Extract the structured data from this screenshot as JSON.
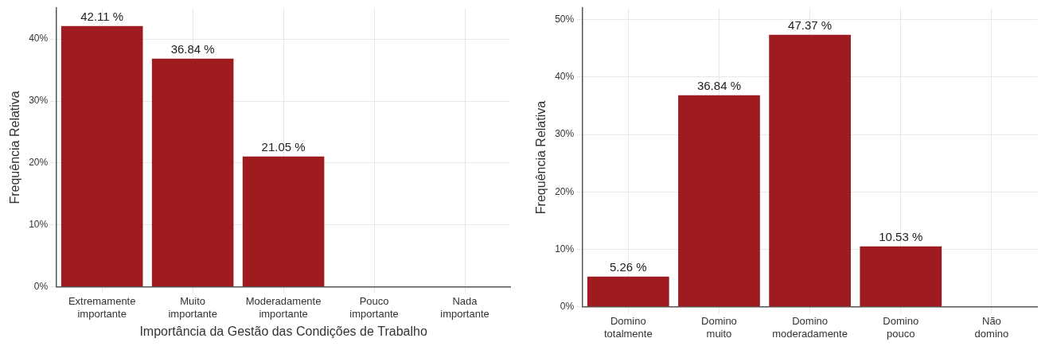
{
  "chart_data": [
    {
      "type": "bar",
      "x_label": "Importância da Gestão das Condições de Trabalho",
      "y_label": "Frequência Relativa",
      "categories": [
        "Extremamente importante",
        "Muito importante",
        "Moderadamente importante",
        "Pouco importante",
        "Nada importante"
      ],
      "values": [
        42.11,
        36.84,
        21.05,
        0,
        0
      ],
      "value_labels": [
        "42.11 %",
        "36.84 %",
        "21.05 %",
        null,
        null
      ],
      "color": "#9e1b20",
      "ylim": [
        0,
        45
      ],
      "yticks": [
        {
          "value": 0,
          "label": "0%"
        },
        {
          "value": 10,
          "label": "10%"
        },
        {
          "value": 20,
          "label": "20%"
        },
        {
          "value": 30,
          "label": "30%"
        },
        {
          "value": 40,
          "label": "40%"
        }
      ],
      "grid": true,
      "data_labels": true
    },
    {
      "type": "bar",
      "y_label": "Frequência Relativa",
      "categories": [
        "Domino totalmente",
        "Domino muito",
        "Domino moderadamente",
        "Domino pouco",
        "Não domino"
      ],
      "values": [
        5.26,
        36.84,
        47.37,
        10.53,
        0
      ],
      "value_labels": [
        "5.26 %",
        "36.84 %",
        "47.37 %",
        "10.53 %",
        null
      ],
      "color": "#9e1b20",
      "ylim": [
        0,
        52
      ],
      "yticks": [
        {
          "value": 0,
          "label": "0%"
        },
        {
          "value": 10,
          "label": "10%"
        },
        {
          "value": 20,
          "label": "20%"
        },
        {
          "value": 30,
          "label": "30%"
        },
        {
          "value": 40,
          "label": "40%"
        },
        {
          "value": 50,
          "label": "50%"
        }
      ],
      "grid": true,
      "data_labels": true
    }
  ]
}
